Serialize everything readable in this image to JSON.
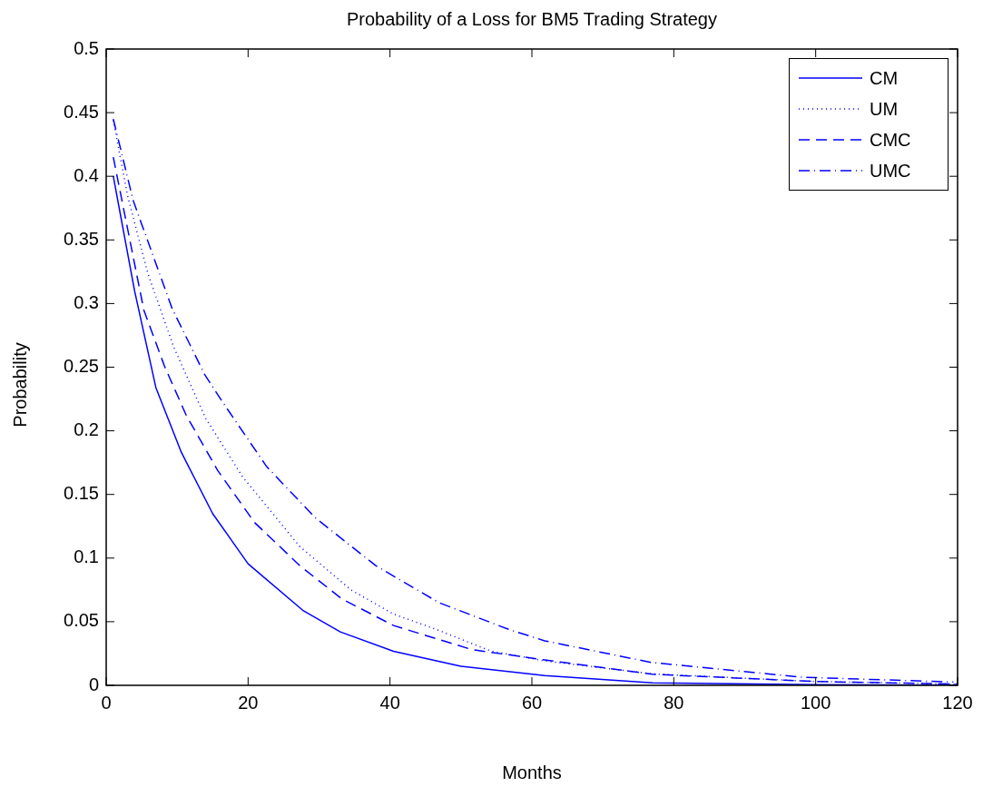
{
  "chart_data": {
    "type": "line",
    "title": "Probability of a Loss for BM5 Trading Strategy",
    "xlabel": "Months",
    "ylabel": "Probability",
    "xlim": [
      0,
      120
    ],
    "xticks": [
      0,
      20,
      40,
      60,
      80,
      100,
      120
    ],
    "ylim": [
      0,
      0.5
    ],
    "yticks": [
      0,
      0.05,
      0.1,
      0.15,
      0.2,
      0.25,
      0.3,
      0.35,
      0.4,
      0.45,
      0.5
    ],
    "grid": false,
    "legend": "top right",
    "marker": "none",
    "series": [
      {
        "name": "CM",
        "color": "#0000ff",
        "line_style": "solid",
        "x": [
          1,
          2,
          4,
          7,
          10.6,
          15,
          20,
          27.7,
          33,
          40.5,
          50,
          61.8,
          77,
          100,
          120
        ],
        "values": [
          0.4,
          0.37,
          0.31,
          0.234,
          0.183,
          0.135,
          0.0955,
          0.059,
          0.042,
          0.0267,
          0.015,
          0.0076,
          0.002,
          0.0005,
          0.0001
        ]
      },
      {
        "name": "UM",
        "color": "#0000ff",
        "line_style": "dotted",
        "x": [
          1,
          3,
          5.85,
          9.5,
          14,
          19.2,
          27.3,
          34.5,
          40.5,
          46.5,
          54.2,
          62,
          77,
          100,
          120
        ],
        "values": [
          0.444,
          0.385,
          0.324,
          0.266,
          0.21,
          0.164,
          0.109,
          0.075,
          0.056,
          0.044,
          0.027,
          0.019,
          0.009,
          0.003,
          0.001
        ]
      },
      {
        "name": "CMC",
        "color": "#0000ff",
        "line_style": "dashed",
        "x": [
          1,
          5.3,
          8.2,
          11.3,
          15.7,
          20.9,
          27.3,
          33.2,
          40.5,
          51.6,
          61.8,
          77,
          100,
          120
        ],
        "values": [
          0.415,
          0.295,
          0.251,
          0.212,
          0.169,
          0.128,
          0.094,
          0.068,
          0.047,
          0.028,
          0.02,
          0.0087,
          0.003,
          0.001
        ]
      },
      {
        "name": "UMC",
        "color": "#0000ff",
        "line_style": "dashdot",
        "x": [
          1,
          3.8,
          9.3,
          13.9,
          16.6,
          22.6,
          29.4,
          38,
          46.9,
          56.7,
          61.8,
          76.8,
          98,
          119.4
        ],
        "values": [
          0.445,
          0.381,
          0.296,
          0.244,
          0.221,
          0.172,
          0.132,
          0.094,
          0.065,
          0.044,
          0.035,
          0.018,
          0.0064,
          0.0026
        ]
      }
    ]
  }
}
